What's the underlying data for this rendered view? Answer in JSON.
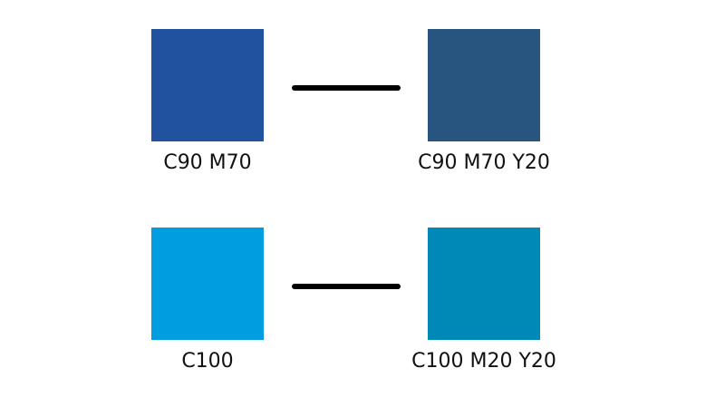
{
  "pairs": [
    {
      "left": {
        "label": "C90 M70",
        "color": "#2152a0"
      },
      "right": {
        "label": "C90 M70 Y20",
        "color": "#27557f"
      }
    },
    {
      "left": {
        "label": "C100",
        "color": "#009ee0"
      },
      "right": {
        "label": "C100 M20 Y20",
        "color": "#0088b6"
      }
    }
  ]
}
